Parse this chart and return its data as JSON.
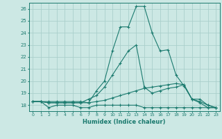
{
  "xlabel": "Humidex (Indice chaleur)",
  "x_range": [
    -0.5,
    23.5
  ],
  "y_range": [
    17.5,
    26.5
  ],
  "yticks": [
    18,
    19,
    20,
    21,
    22,
    23,
    24,
    25,
    26
  ],
  "xticks": [
    0,
    1,
    2,
    3,
    4,
    5,
    6,
    7,
    8,
    9,
    10,
    11,
    12,
    13,
    14,
    15,
    16,
    17,
    18,
    19,
    20,
    21,
    22,
    23
  ],
  "background_color": "#cce8e4",
  "grid_color": "#aacfcb",
  "line_color": "#1a7a6e",
  "lines": [
    {
      "x": [
        0,
        1,
        2,
        3,
        4,
        5,
        6,
        7,
        8,
        9,
        10,
        11,
        12,
        13,
        14,
        15,
        16,
        17,
        18,
        19,
        20,
        21,
        22,
        23
      ],
      "y": [
        18.3,
        18.3,
        17.8,
        18.0,
        18.0,
        18.0,
        17.8,
        17.8,
        18.0,
        18.0,
        18.0,
        18.0,
        18.0,
        18.0,
        17.8,
        17.8,
        17.8,
        17.8,
        17.8,
        17.8,
        17.8,
        17.8,
        17.8,
        17.8
      ]
    },
    {
      "x": [
        0,
        1,
        2,
        3,
        4,
        5,
        6,
        7,
        8,
        9,
        10,
        11,
        12,
        13,
        14,
        15,
        16,
        17,
        18,
        19,
        20,
        21,
        22,
        23
      ],
      "y": [
        18.3,
        18.3,
        18.2,
        18.2,
        18.2,
        18.2,
        18.2,
        18.2,
        18.3,
        18.4,
        18.6,
        18.8,
        19.0,
        19.2,
        19.4,
        19.5,
        19.6,
        19.7,
        19.8,
        19.7,
        18.5,
        18.2,
        17.8,
        17.8
      ]
    },
    {
      "x": [
        0,
        1,
        2,
        3,
        4,
        5,
        6,
        7,
        8,
        9,
        10,
        11,
        12,
        13,
        14,
        15,
        16,
        17,
        18,
        19,
        20,
        21,
        22,
        23
      ],
      "y": [
        18.3,
        18.3,
        18.2,
        18.2,
        18.2,
        18.2,
        18.2,
        18.5,
        18.8,
        19.5,
        20.5,
        21.5,
        22.5,
        23.0,
        19.5,
        19.0,
        19.2,
        19.4,
        19.5,
        19.7,
        18.5,
        18.3,
        18.0,
        17.8
      ]
    },
    {
      "x": [
        0,
        1,
        2,
        3,
        4,
        5,
        6,
        7,
        8,
        9,
        10,
        11,
        12,
        13,
        14,
        15,
        16,
        17,
        18,
        19,
        20,
        21,
        22,
        23
      ],
      "y": [
        18.3,
        18.3,
        18.3,
        18.3,
        18.3,
        18.3,
        18.3,
        18.2,
        19.2,
        20.0,
        22.5,
        24.5,
        24.5,
        26.2,
        26.2,
        24.0,
        22.5,
        22.6,
        20.5,
        19.6,
        18.5,
        18.5,
        18.0,
        17.8
      ]
    }
  ]
}
